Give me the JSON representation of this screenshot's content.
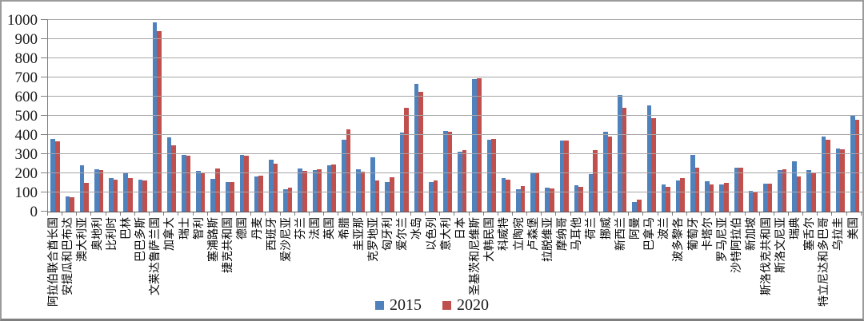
{
  "legend": {
    "series1_label": "2015",
    "series2_label": "2020"
  },
  "colors": {
    "series_2015": "#4F81BD",
    "series_2020": "#C0504D",
    "gridline": "#A6A6A6",
    "axis": "#808080",
    "background": "#FFFFFF",
    "figure_border": "#9B9B9B"
  },
  "chart_data": {
    "type": "bar",
    "title": "",
    "xlabel": "",
    "ylabel": "",
    "ylim": [
      0,
      1000
    ],
    "y_ticks": [
      0,
      100,
      200,
      300,
      400,
      500,
      600,
      700,
      800,
      900,
      1000
    ],
    "grid": true,
    "legend_position": "bottom",
    "x_label_rotation": 90,
    "categories": [
      "阿拉伯联合酋长国",
      "安提瓜和巴布达",
      "澳大利亚",
      "奥地利",
      "比利时",
      "巴林",
      "巴巴多斯",
      "文莱达鲁萨兰国",
      "加拿大",
      "瑞士",
      "智利",
      "塞浦路斯",
      "捷克共和国",
      "德国",
      "丹麦",
      "西班牙",
      "爱沙尼亚",
      "芬兰",
      "法国",
      "英国",
      "希腊",
      "圭亚那",
      "克罗地亚",
      "匈牙利",
      "爱尔兰",
      "冰岛",
      "以色列",
      "意大利",
      "日本",
      "圣基茨和尼维斯",
      "大韩民国",
      "科威特",
      "立陶宛",
      "卢森堡",
      "拉脱维亚",
      "摩纳哥",
      "马耳他",
      "荷兰",
      "挪威",
      "新西兰",
      "阿曼",
      "巴拿马",
      "波兰",
      "波多黎各",
      "葡萄牙",
      "卡塔尔",
      "罗马尼亚",
      "沙特阿拉伯",
      "新加坡",
      "斯洛伐克共和国",
      "斯洛文尼亚",
      "瑞典",
      "塞舌尔",
      "特立尼达和多巴哥",
      "乌拉圭",
      "美国"
    ],
    "series": [
      {
        "name": "2015",
        "color": "#4F81BD",
        "values": [
          378,
          80,
          243,
          221,
          175,
          204,
          165,
          987,
          387,
          297,
          214,
          172,
          155,
          297,
          182,
          269,
          117,
          224,
          218,
          240,
          376,
          220,
          284,
          153,
          411,
          665,
          153,
          422,
          314,
          690,
          377,
          175,
          118,
          198,
          123,
          371,
          138,
          195,
          415,
          610,
          51,
          554,
          140,
          161,
          297,
          158,
          140,
          230,
          107,
          144,
          216,
          263,
          218,
          390,
          328,
          499
        ]
      },
      {
        "name": "2020",
        "color": "#C0504D",
        "values": [
          368,
          76,
          150,
          218,
          167,
          177,
          161,
          940,
          346,
          291,
          199,
          224,
          155,
          293,
          186,
          251,
          126,
          212,
          219,
          247,
          428,
          210,
          163,
          181,
          540,
          624,
          163,
          418,
          321,
          695,
          378,
          168,
          134,
          206,
          121,
          370,
          128,
          321,
          391,
          540,
          61,
          486,
          128,
          175,
          228,
          143,
          148,
          231,
          103,
          146,
          219,
          182,
          203,
          375,
          326,
          481
        ]
      }
    ]
  }
}
